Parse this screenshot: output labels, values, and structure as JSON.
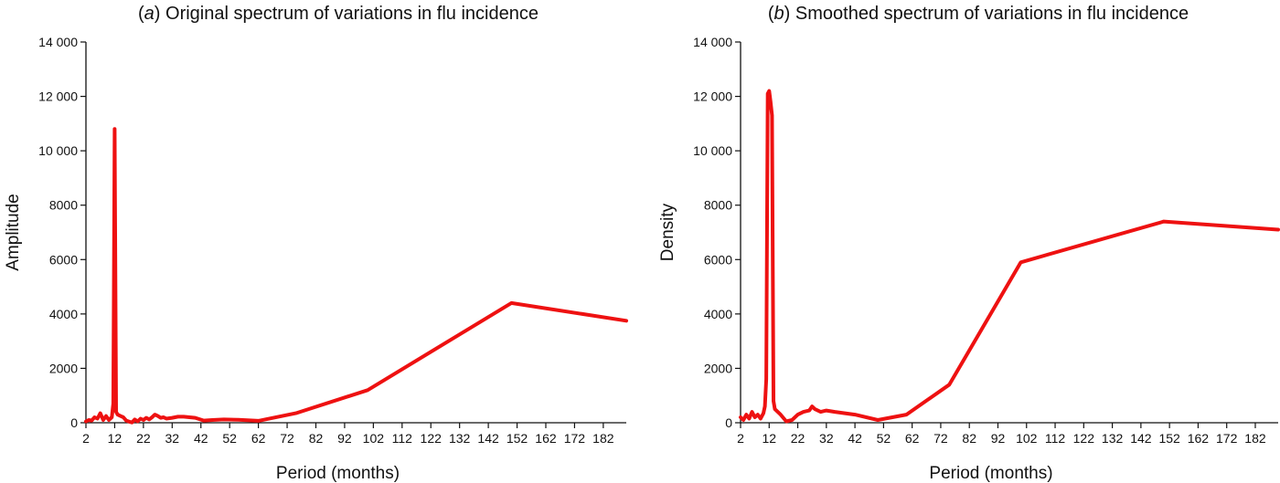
{
  "chart_data": [
    {
      "type": "line",
      "title_letter": "a",
      "title": "Original spectrum of variations in flu incidence",
      "xlabel": "Period (months)",
      "ylabel": "Amplitude",
      "xlim": [
        2,
        190
      ],
      "ylim": [
        0,
        14000
      ],
      "x_ticks": [
        "2",
        "12",
        "22",
        "32",
        "42",
        "52",
        "62",
        "72",
        "82",
        "92",
        "102",
        "112",
        "122",
        "132",
        "142",
        "152",
        "162",
        "172",
        "182"
      ],
      "y_ticks": [
        "0",
        "2000",
        "4000",
        "6000",
        "8000",
        "10 000",
        "12 000",
        "14 000"
      ],
      "series": [
        {
          "color": "#ee1111",
          "x": [
            2,
            3,
            4,
            5,
            6,
            7,
            8,
            9,
            10,
            11,
            11.5,
            12,
            12.5,
            13,
            14,
            15,
            16,
            17,
            18,
            19,
            20,
            21,
            22,
            23,
            24,
            25,
            26,
            27,
            28,
            29,
            30,
            32,
            34,
            36,
            38,
            40,
            43,
            46,
            50,
            55,
            62,
            75,
            100,
            150,
            190
          ],
          "y": [
            50,
            100,
            80,
            200,
            150,
            350,
            100,
            250,
            100,
            200,
            700,
            10800,
            400,
            300,
            250,
            200,
            80,
            40,
            10,
            120,
            50,
            150,
            100,
            180,
            120,
            200,
            300,
            250,
            180,
            200,
            150,
            180,
            220,
            220,
            200,
            180,
            80,
            100,
            120,
            110,
            70,
            350,
            1200,
            4400,
            3750
          ]
        }
      ]
    },
    {
      "type": "line",
      "title_letter": "b",
      "title": "Smoothed spectrum of variations in flu incidence",
      "xlabel": "Period (months)",
      "ylabel": "Density",
      "xlim": [
        2,
        190
      ],
      "ylim": [
        0,
        14000
      ],
      "x_ticks": [
        "2",
        "12",
        "22",
        "32",
        "42",
        "52",
        "62",
        "72",
        "82",
        "92",
        "102",
        "112",
        "122",
        "132",
        "142",
        "152",
        "162",
        "172",
        "182"
      ],
      "y_ticks": [
        "0",
        "2000",
        "4000",
        "6000",
        "8000",
        "10 000",
        "12 000",
        "14 000"
      ],
      "series": [
        {
          "color": "#ee1111",
          "x": [
            2,
            3,
            4,
            5,
            6,
            7,
            8,
            9,
            10,
            10.5,
            11,
            11.5,
            12,
            12.5,
            13,
            13.5,
            14,
            16,
            18,
            20,
            22,
            24,
            26,
            27,
            28,
            30,
            32,
            35,
            42,
            50,
            60,
            75,
            100,
            150,
            190
          ],
          "y": [
            200,
            100,
            300,
            150,
            400,
            200,
            300,
            150,
            350,
            600,
            1600,
            12100,
            12200,
            11800,
            11300,
            800,
            500,
            300,
            50,
            100,
            300,
            400,
            450,
            600,
            500,
            400,
            450,
            400,
            300,
            100,
            300,
            1400,
            5900,
            7400,
            7100
          ]
        }
      ]
    }
  ]
}
